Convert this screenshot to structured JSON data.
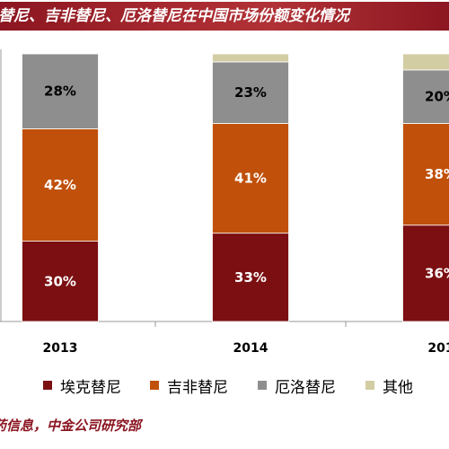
{
  "chart_data": {
    "type": "bar",
    "stacked": true,
    "normalized_percent": true,
    "title": "替尼、吉非替尼、厄洛替尼在中国市场份额变化情况",
    "categories": [
      "2013",
      "2014",
      "201"
    ],
    "series": [
      {
        "name": "埃克替尼",
        "color": "#7b0f12",
        "values": [
          30,
          33,
          36
        ],
        "labels": [
          "30%",
          "33%",
          "36%"
        ]
      },
      {
        "name": "吉非替尼",
        "color": "#c0500a",
        "values": [
          42,
          41,
          38
        ],
        "labels": [
          "42%",
          "41%",
          "38%"
        ]
      },
      {
        "name": "厄洛替尼",
        "color": "#8e8e8e",
        "values": [
          28,
          23,
          20
        ],
        "labels": [
          "28%",
          "23%",
          "20%"
        ]
      },
      {
        "name": "其他",
        "color": "#d3cda3",
        "values": [
          0,
          3,
          6
        ],
        "labels": [
          "",
          "",
          ""
        ]
      }
    ],
    "ylim": [
      0,
      100
    ],
    "grid": false,
    "legend_position": "bottom"
  },
  "source_note": "药信息，中金公司研究部"
}
